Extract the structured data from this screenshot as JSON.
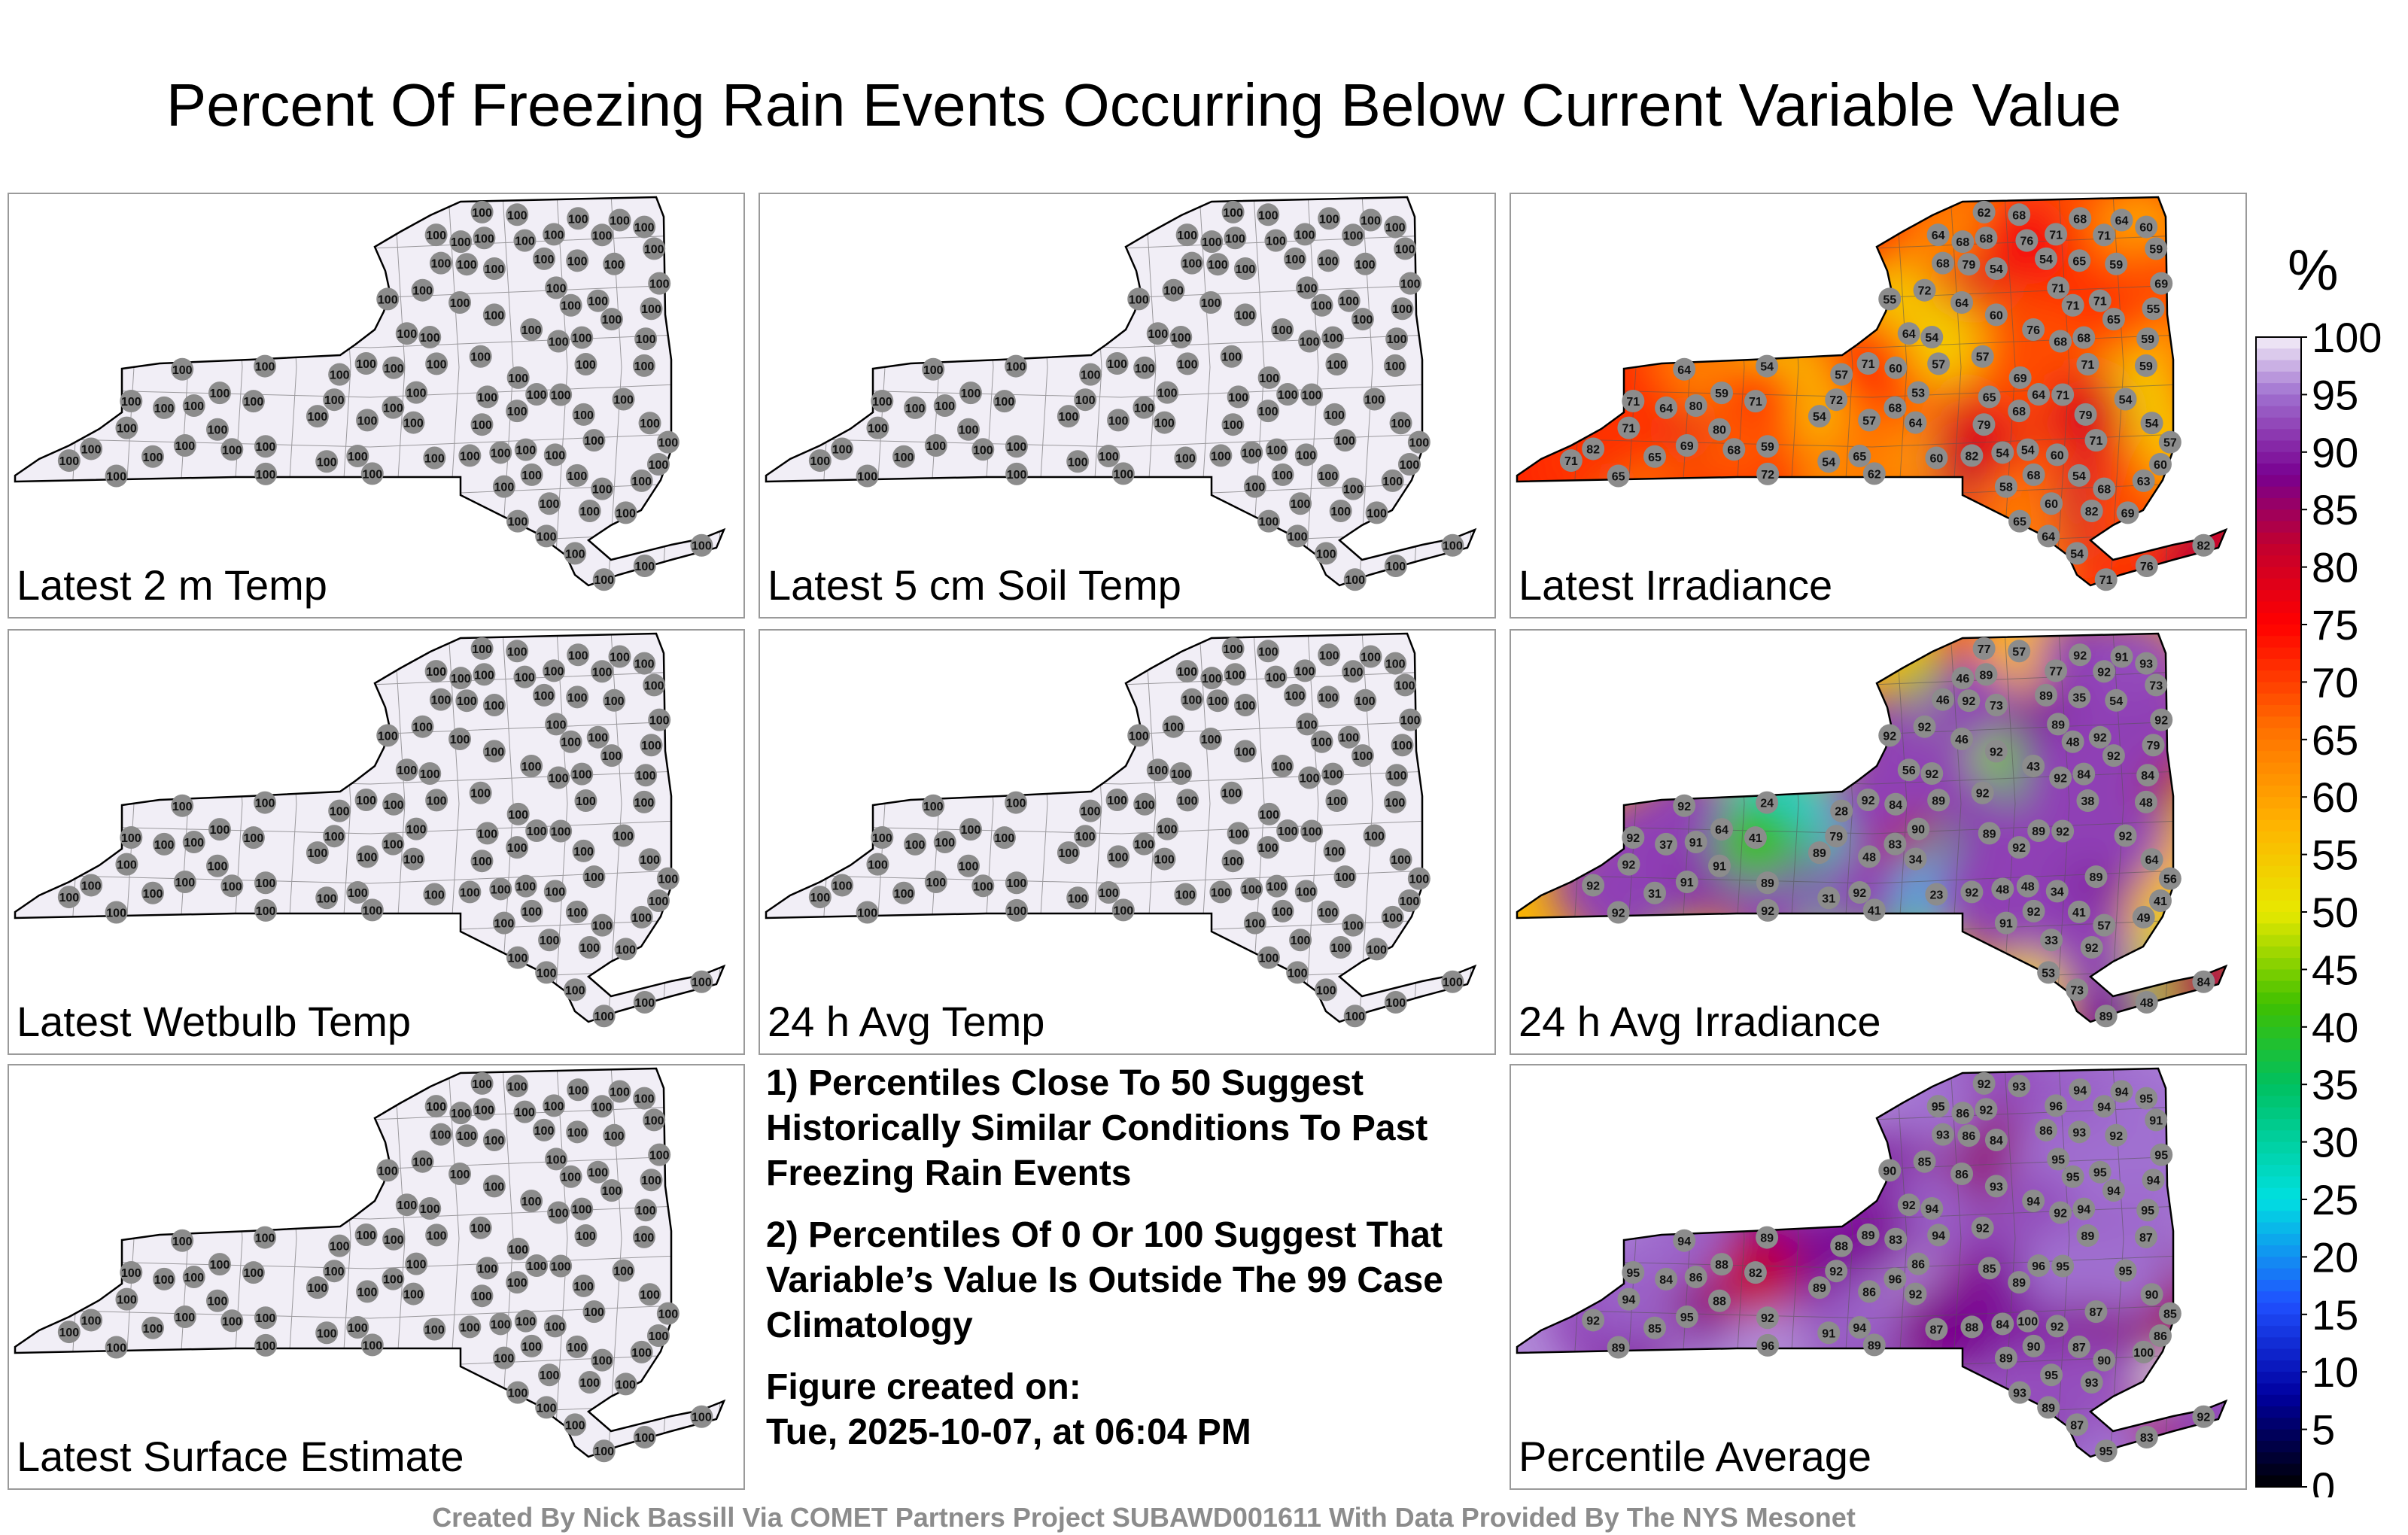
{
  "title": "Percent Of Freezing Rain Events Occurring Below Current Variable Value",
  "panels": [
    {
      "id": "latest-2m-temp",
      "label": "Latest 2 m Temp",
      "mode": "uniform",
      "value": "100"
    },
    {
      "id": "latest-5cm-soil-temp",
      "label": "Latest 5 cm Soil Temp",
      "mode": "uniform",
      "value": "100"
    },
    {
      "id": "latest-irradiance",
      "label": "Latest Irradiance",
      "mode": "field",
      "field": "irr_latest"
    },
    {
      "id": "latest-wetbulb-temp",
      "label": "Latest Wetbulb Temp",
      "mode": "uniform",
      "value": "100"
    },
    {
      "id": "avg-temp-24h",
      "label": "24 h Avg Temp",
      "mode": "uniform",
      "value": "100"
    },
    {
      "id": "avg-irradiance-24h",
      "label": "24 h Avg Irradiance",
      "mode": "field",
      "field": "irr_24h"
    },
    {
      "id": "latest-surface-estimate",
      "label": "Latest Surface Estimate",
      "mode": "uniform",
      "value": "100"
    },
    {
      "id": "percentile-average",
      "label": "Percentile Average",
      "mode": "field",
      "field": "pct_avg"
    }
  ],
  "notes": {
    "note1": "1) Percentiles Close To 50 Suggest Historically Similar Conditions To Past Freezing Rain Events",
    "note2": "2) Percentiles Of 0 Or 100 Suggest That Variable’s Value Is Outside The 99 Case Climatology",
    "created_label": "Figure created on:",
    "created_value": "Tue, 2025-10-07, at 06:04 PM"
  },
  "colorbar": {
    "unit": "%",
    "ticks": [
      "100",
      "95",
      "90",
      "85",
      "80",
      "75",
      "70",
      "65",
      "60",
      "55",
      "50",
      "45",
      "40",
      "35",
      "30",
      "25",
      "20",
      "15",
      "10",
      "5",
      "0"
    ]
  },
  "credit": "Created By Nick Bassill Via COMET Partners Project SUBAWD001611 With Data Provided By The NYS Mesonet",
  "map_data": {
    "station_values": {
      "irr_latest": [
        "57",
        "72",
        "57",
        "68",
        "54",
        "53",
        "54",
        "60",
        "64",
        "60",
        "54",
        "57",
        "54",
        "58",
        "55",
        "59",
        "59",
        "65",
        "68",
        "54",
        "60",
        "65",
        "60",
        "59",
        "62",
        "54",
        "57",
        "60",
        "63",
        "64",
        "65",
        "54",
        "54",
        "59",
        "64",
        "64",
        "69",
        "76",
        "71",
        "57",
        "54",
        "80",
        "65",
        "64",
        "68",
        "68",
        "59",
        "71",
        "80",
        "72",
        "60",
        "54",
        "68",
        "71",
        "71",
        "76",
        "59",
        "55",
        "64",
        "64",
        "62",
        "68",
        "82",
        "68",
        "71",
        "71",
        "72",
        "71",
        "79",
        "82",
        "68",
        "82",
        "82",
        "68",
        "71",
        "54",
        "54",
        "65",
        "68",
        "71",
        "68",
        "71",
        "65",
        "64",
        "71",
        "60",
        "71",
        "71",
        "69",
        "64",
        "65",
        "79",
        "79",
        "68",
        "76",
        "69",
        "71",
        "69"
      ],
      "irr_24h": [
        "48",
        "79",
        "89",
        "89",
        "73",
        "90",
        "89",
        "92",
        "56",
        "34",
        "48",
        "28",
        "89",
        "91",
        "79",
        "54",
        "64",
        "35",
        "46",
        "48",
        "84",
        "89",
        "41",
        "48",
        "41",
        "73",
        "92",
        "33",
        "49",
        "37",
        "31",
        "24",
        "64",
        "73",
        "91",
        "89",
        "91",
        "48",
        "38",
        "56",
        "41",
        "91",
        "92",
        "34",
        "57",
        "83",
        "84",
        "89",
        "91",
        "92",
        "23",
        "31",
        "46",
        "48",
        "77",
        "43",
        "89",
        "92",
        "46",
        "53",
        "77",
        "57",
        "84",
        "84",
        "89",
        "89",
        "92",
        "41",
        "92",
        "92",
        "92",
        "92",
        "92",
        "92",
        "92",
        "92",
        "92",
        "92",
        "92",
        "92",
        "92",
        "92",
        "92",
        "92",
        "92",
        "93",
        "92",
        "92",
        "92"
      ],
      "pct_avg": [
        "86",
        "92",
        "94",
        "92",
        "84",
        "86",
        "89",
        "93",
        "92",
        "92",
        "84",
        "88",
        "86",
        "89",
        "94",
        "92",
        "88",
        "93",
        "86",
        "100",
        "83",
        "85",
        "86",
        "87",
        "89",
        "87",
        "92",
        "95",
        "100",
        "84",
        "85",
        "89",
        "90",
        "91",
        "94",
        "96",
        "95",
        "83",
        "89",
        "85",
        "87",
        "88",
        "89",
        "92",
        "90",
        "96",
        "95",
        "87",
        "86",
        "85",
        "87",
        "91",
        "93",
        "95",
        "96",
        "94",
        "92",
        "90",
        "86",
        "89",
        "92",
        "93",
        "92",
        "94",
        "95",
        "95",
        "96",
        "82",
        "86",
        "88",
        "90",
        "92",
        "93",
        "92",
        "94",
        "94",
        "95",
        "94",
        "89",
        "89",
        "94",
        "95",
        "94",
        "94",
        "95",
        "95",
        "94",
        "95",
        "95",
        "95",
        "93"
      ]
    }
  }
}
